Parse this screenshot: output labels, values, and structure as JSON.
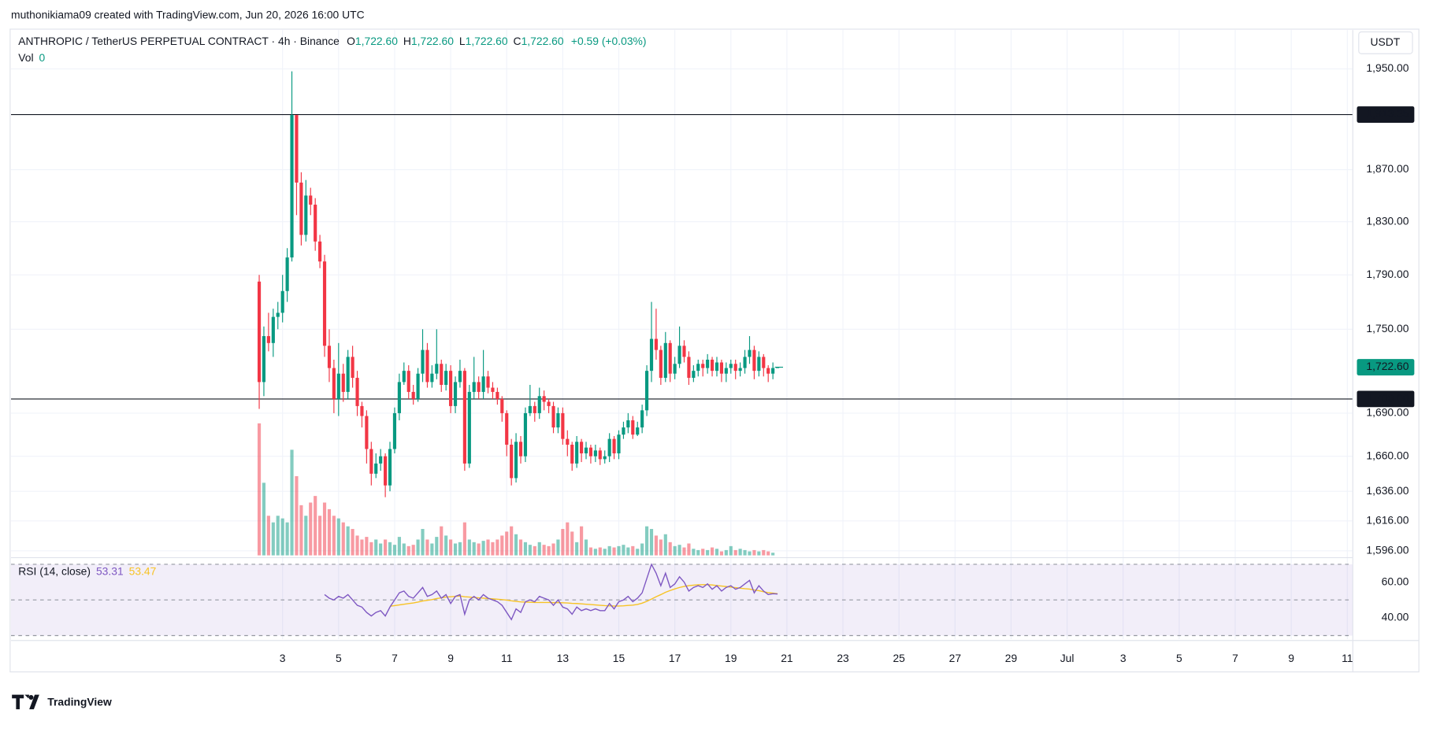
{
  "header": "muthonikiama09 created with TradingView.com, Jun 20, 2026 16:00 UTC",
  "brand": "TradingView",
  "chart_data": {
    "type": "candlestick",
    "symbol": "ANTHROPIC / TetherUS PERPETUAL CONTRACT · 4h · Binance",
    "ohlc_legend": [
      {
        "key": "O",
        "text": "1,722.60"
      },
      {
        "key": "H",
        "text": "1,722.60"
      },
      {
        "key": "L",
        "text": "1,722.60"
      },
      {
        "key": "C",
        "text": "1,722.60"
      }
    ],
    "change": "+0.59 (+0.03%)",
    "volume_label": "Vol",
    "currency": "USDT",
    "up_color": "#089981",
    "down_color": "#f23645",
    "x": [
      2.167,
      2.333,
      2.5,
      2.667,
      2.833,
      3,
      3.167,
      3.333,
      3.5,
      3.667,
      3.833,
      4,
      4.167,
      4.333,
      4.5,
      4.667,
      4.833,
      5,
      5.167,
      5.333,
      5.5,
      5.667,
      5.833,
      6,
      6.167,
      6.333,
      6.5,
      6.667,
      6.833,
      7,
      7.167,
      7.333,
      7.5,
      7.667,
      7.833,
      8,
      8.167,
      8.333,
      8.5,
      8.667,
      8.833,
      9,
      9.167,
      9.333,
      9.5,
      9.667,
      9.833,
      10,
      10.167,
      10.333,
      10.5,
      10.667,
      10.833,
      11,
      11.167,
      11.333,
      11.5,
      11.667,
      11.833,
      12,
      12.167,
      12.333,
      12.5,
      12.667,
      12.833,
      13,
      13.167,
      13.333,
      13.5,
      13.667,
      13.833,
      14,
      14.167,
      14.333,
      14.5,
      14.667,
      14.833,
      15,
      15.167,
      15.333,
      15.5,
      15.667,
      15.833,
      16,
      16.167,
      16.333,
      16.5,
      16.667,
      16.833,
      17,
      17.167,
      17.333,
      17.5,
      17.667,
      17.833,
      18,
      18.167,
      18.333,
      18.5,
      18.667,
      18.833,
      19,
      19.167,
      19.333,
      19.5,
      19.667,
      19.833,
      20,
      20.167,
      20.333,
      20.5,
      20.667
    ],
    "open": [
      1785,
      1712,
      1745,
      1740,
      1759,
      1762,
      1778,
      1803,
      1913,
      1860,
      1820,
      1850,
      1843,
      1815,
      1800,
      1738,
      1722,
      1700,
      1718,
      1705,
      1730,
      1715,
      1695,
      1688,
      1665,
      1648,
      1655,
      1660,
      1640,
      1665,
      1690,
      1712,
      1720,
      1705,
      1700,
      1718,
      1735,
      1712,
      1718,
      1725,
      1710,
      1720,
      1695,
      1712,
      1720,
      1655,
      1705,
      1712,
      1705,
      1716,
      1708,
      1705,
      1700,
      1690,
      1668,
      1645,
      1670,
      1660,
      1690,
      1695,
      1690,
      1702,
      1698,
      1695,
      1680,
      1690,
      1672,
      1668,
      1655,
      1670,
      1662,
      1666,
      1660,
      1664,
      1658,
      1660,
      1672,
      1662,
      1675,
      1680,
      1685,
      1675,
      1680,
      1692,
      1720,
      1743,
      1735,
      1715,
      1740,
      1718,
      1725,
      1738,
      1730,
      1715,
      1720,
      1725,
      1722,
      1728,
      1720,
      1726,
      1718,
      1722,
      1725,
      1720,
      1722,
      1730,
      1735,
      1720,
      1730,
      1722,
      1718,
      1722.6
    ],
    "high": [
      1790,
      1752,
      1762,
      1765,
      1770,
      1790,
      1810,
      1948,
      1913,
      1868,
      1862,
      1856,
      1848,
      1820,
      1805,
      1750,
      1728,
      1740,
      1725,
      1735,
      1738,
      1720,
      1698,
      1692,
      1670,
      1662,
      1665,
      1662,
      1670,
      1694,
      1718,
      1726,
      1724,
      1710,
      1722,
      1750,
      1740,
      1724,
      1750,
      1728,
      1725,
      1724,
      1716,
      1728,
      1722,
      1710,
      1730,
      1716,
      1735,
      1720,
      1712,
      1708,
      1702,
      1692,
      1672,
      1676,
      1674,
      1694,
      1710,
      1698,
      1708,
      1706,
      1700,
      1698,
      1694,
      1694,
      1678,
      1670,
      1674,
      1672,
      1670,
      1668,
      1668,
      1666,
      1664,
      1676,
      1674,
      1678,
      1684,
      1690,
      1688,
      1684,
      1696,
      1724,
      1770,
      1765,
      1738,
      1748,
      1742,
      1730,
      1752,
      1742,
      1734,
      1724,
      1728,
      1728,
      1732,
      1730,
      1730,
      1728,
      1726,
      1728,
      1728,
      1726,
      1735,
      1745,
      1738,
      1734,
      1732,
      1724,
      1726,
      1722.6
    ],
    "low": [
      1693,
      1702,
      1734,
      1730,
      1750,
      1755,
      1770,
      1800,
      1835,
      1812,
      1815,
      1835,
      1808,
      1795,
      1730,
      1712,
      1690,
      1688,
      1698,
      1700,
      1708,
      1688,
      1680,
      1655,
      1640,
      1645,
      1650,
      1632,
      1636,
      1662,
      1685,
      1710,
      1700,
      1696,
      1698,
      1712,
      1708,
      1708,
      1714,
      1705,
      1706,
      1690,
      1690,
      1708,
      1650,
      1652,
      1700,
      1700,
      1700,
      1704,
      1700,
      1696,
      1684,
      1660,
      1640,
      1642,
      1655,
      1656,
      1688,
      1684,
      1686,
      1692,
      1690,
      1676,
      1676,
      1668,
      1660,
      1650,
      1652,
      1656,
      1658,
      1655,
      1656,
      1654,
      1655,
      1656,
      1658,
      1658,
      1672,
      1676,
      1672,
      1674,
      1676,
      1688,
      1712,
      1728,
      1710,
      1712,
      1712,
      1714,
      1722,
      1726,
      1710,
      1712,
      1716,
      1716,
      1718,
      1716,
      1716,
      1712,
      1712,
      1718,
      1714,
      1716,
      1718,
      1725,
      1714,
      1716,
      1716,
      1712,
      1714,
      1722.6
    ],
    "close": [
      1712,
      1745,
      1740,
      1759,
      1762,
      1778,
      1803,
      1913,
      1860,
      1820,
      1850,
      1843,
      1815,
      1800,
      1738,
      1722,
      1700,
      1718,
      1705,
      1730,
      1715,
      1695,
      1688,
      1665,
      1648,
      1655,
      1660,
      1640,
      1665,
      1690,
      1712,
      1720,
      1705,
      1700,
      1718,
      1735,
      1712,
      1718,
      1725,
      1710,
      1720,
      1695,
      1712,
      1720,
      1655,
      1705,
      1712,
      1705,
      1716,
      1708,
      1705,
      1700,
      1690,
      1668,
      1645,
      1670,
      1660,
      1690,
      1695,
      1690,
      1702,
      1698,
      1695,
      1680,
      1690,
      1672,
      1668,
      1655,
      1670,
      1662,
      1666,
      1660,
      1664,
      1658,
      1660,
      1672,
      1662,
      1675,
      1680,
      1685,
      1675,
      1680,
      1692,
      1720,
      1743,
      1735,
      1715,
      1740,
      1718,
      1725,
      1738,
      1730,
      1715,
      1720,
      1725,
      1722,
      1728,
      1720,
      1726,
      1718,
      1722,
      1725,
      1720,
      1722,
      1730,
      1735,
      1720,
      1730,
      1722,
      1718,
      1722.01,
      1722.6
    ],
    "volume": [
      100,
      55,
      30,
      25,
      30,
      28,
      25,
      80,
      60,
      38,
      30,
      40,
      45,
      30,
      40,
      35,
      30,
      28,
      25,
      22,
      20,
      15,
      12,
      14,
      10,
      12,
      9,
      12,
      10,
      8,
      14,
      9,
      7,
      8,
      12,
      20,
      12,
      9,
      14,
      22,
      15,
      12,
      9,
      10,
      25,
      12,
      10,
      9,
      11,
      12,
      10,
      12,
      15,
      18,
      22,
      16,
      12,
      10,
      8,
      7,
      10,
      8,
      7,
      9,
      12,
      20,
      25,
      18,
      10,
      22,
      12,
      6,
      5,
      6,
      5,
      7,
      6,
      7,
      8,
      6,
      7,
      5,
      9,
      22,
      20,
      15,
      12,
      16,
      10,
      7,
      8,
      6,
      9,
      5,
      4,
      5,
      4,
      6,
      5,
      3,
      4,
      7,
      4,
      5,
      4,
      3,
      4,
      3,
      4,
      3,
      2,
      0
    ],
    "volume_lim": [
      0,
      400
    ],
    "xlim": [
      -6.69,
      41.18
    ],
    "xticks": [
      3,
      5,
      7,
      9,
      11,
      13,
      15,
      17,
      19,
      21,
      23,
      25,
      27,
      29,
      {
        "value": 31,
        "label": "Jul"
      },
      {
        "value": 33,
        "label": "3"
      },
      {
        "value": 35,
        "label": "5"
      },
      {
        "value": 37,
        "label": "7"
      },
      {
        "value": 39,
        "label": "9"
      },
      {
        "value": 41,
        "label": "11"
      }
    ],
    "ylim": [
      1593,
      1984
    ],
    "log_scale": true,
    "yticks": [
      {
        "value": 1950,
        "label": "1,950.00"
      },
      {
        "value": 1870,
        "label": "1,870.00"
      },
      {
        "value": 1830,
        "label": "1,830.00"
      },
      {
        "value": 1790,
        "label": "1,790.00"
      },
      {
        "value": 1750,
        "label": "1,750.00"
      },
      {
        "value": 1690,
        "label": "1,690.00"
      },
      {
        "value": 1660,
        "label": "1,660.00"
      },
      {
        "value": 1636,
        "label": "1,636.00"
      },
      {
        "value": 1616,
        "label": "1,616.00"
      },
      {
        "value": 1596,
        "label": "1,596.00"
      }
    ],
    "grid": true,
    "hlines": [
      {
        "value": 1913.35,
        "label": "1,913.35"
      },
      {
        "value": 1700,
        "label": "1,700.00"
      }
    ],
    "last_price": {
      "value": 1722.6,
      "label": "1,722.60"
    },
    "rsi": {
      "title": "RSI (14, close)",
      "color": "#7e57c2",
      "values": [
        null,
        null,
        null,
        null,
        null,
        null,
        null,
        null,
        null,
        null,
        null,
        null,
        null,
        null,
        53,
        51,
        50,
        52,
        51,
        53,
        50,
        47,
        46,
        43,
        41,
        43,
        44,
        41,
        46,
        50,
        54,
        55,
        52,
        51,
        54,
        57,
        52,
        53,
        55,
        51,
        53,
        48,
        52,
        53,
        42,
        50,
        52,
        50,
        53,
        51,
        50,
        49,
        47,
        43,
        39,
        45,
        43,
        49,
        50,
        49,
        52,
        51,
        50,
        47,
        50,
        46,
        45,
        42,
        46,
        44,
        45,
        44,
        45,
        44,
        44,
        48,
        45,
        49,
        50,
        52,
        49,
        51,
        54,
        62,
        70,
        65,
        58,
        65,
        57,
        59,
        63,
        60,
        55,
        57,
        58,
        57,
        59,
        56,
        58,
        55,
        57,
        58,
        56,
        57,
        59,
        61,
        54,
        58,
        55,
        53,
        53.5,
        53.31
      ],
      "ma": {
        "color": "#f7c325",
        "values": [
          null,
          null,
          null,
          null,
          null,
          null,
          null,
          null,
          null,
          null,
          null,
          null,
          null,
          null,
          null,
          null,
          null,
          null,
          null,
          null,
          null,
          null,
          null,
          null,
          null,
          null,
          null,
          null,
          46.5,
          46.8,
          47.2,
          47.6,
          48,
          48.3,
          48.8,
          49.4,
          49.8,
          50.2,
          50.8,
          51.2,
          51.6,
          51.8,
          52,
          52.2,
          51.8,
          51.6,
          51.4,
          51.2,
          51,
          50.8,
          50.6,
          50.4,
          50.2,
          49.9,
          49.5,
          49.2,
          48.9,
          48.8,
          48.7,
          48.6,
          48.6,
          48.6,
          48.6,
          48.5,
          48.5,
          48.4,
          48.3,
          48.1,
          48,
          47.8,
          47.6,
          47.4,
          47.2,
          47,
          46.8,
          46.7,
          46.6,
          46.6,
          46.7,
          46.9,
          47.1,
          47.5,
          48.2,
          49.2,
          50.5,
          51.8,
          53,
          54.3,
          55.3,
          56.2,
          57,
          57.6,
          58,
          58.3,
          58.5,
          58.6,
          58.6,
          58.4,
          58.1,
          57.8,
          57.5,
          57.2,
          56.9,
          56.6,
          56.3,
          56.1,
          55.6,
          55.2,
          54.6,
          54.1,
          53.8,
          53.47
        ]
      },
      "ylim": [
        28,
        74
      ],
      "yticks": [
        {
          "value": 40,
          "label": "40.00"
        },
        {
          "value": 60,
          "label": "60.00"
        }
      ],
      "levels": [
        30,
        50,
        70
      ]
    }
  }
}
